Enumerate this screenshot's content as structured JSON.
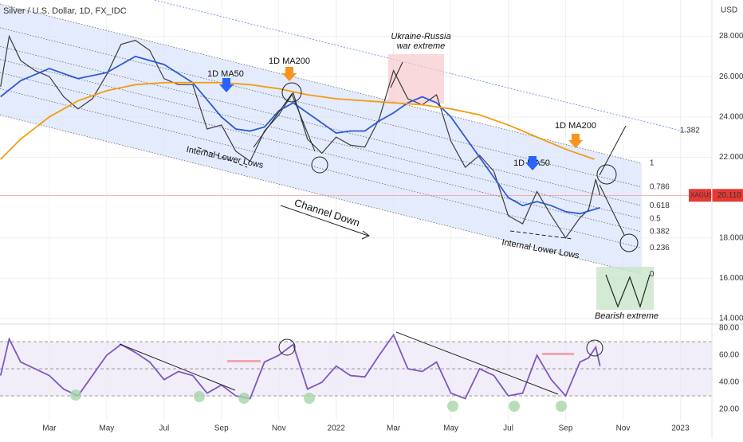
{
  "chart_data": [
    {
      "type": "line",
      "title": "Silver / U.S. Dollar, 1D, FX_IDC",
      "y_axis_label": "USD",
      "xlim": [
        0.28,
        25.1
      ],
      "xticks": [
        {
          "value": 2,
          "label": "Mar"
        },
        {
          "value": 4,
          "label": "May"
        },
        {
          "value": 6,
          "label": "Jul"
        },
        {
          "value": 8,
          "label": "Sep"
        },
        {
          "value": 10,
          "label": "Nov"
        },
        {
          "value": 12,
          "label": "2022"
        },
        {
          "value": 14,
          "label": "Mar"
        },
        {
          "value": 16,
          "label": "May"
        },
        {
          "value": 18,
          "label": "Jul"
        },
        {
          "value": 20,
          "label": "Sep"
        },
        {
          "value": 22,
          "label": "Nov"
        },
        {
          "value": 24,
          "label": "2023"
        }
      ],
      "ylim": [
        13.8,
        29.8
      ],
      "yticks": [
        {
          "value": 28,
          "label": "28.000"
        },
        {
          "value": 26,
          "label": "26.000"
        },
        {
          "value": 24,
          "label": "24.000"
        },
        {
          "value": 22,
          "label": "22.000"
        },
        {
          "value": 18,
          "label": "18.000"
        },
        {
          "value": 16,
          "label": "16.000"
        },
        {
          "value": 14,
          "label": "14.000"
        }
      ],
      "grid": true,
      "series": [
        {
          "name": "XAGUSD",
          "color": "#3c3c3c",
          "x": [
            0.3,
            0.6,
            1,
            1.5,
            2,
            2.5,
            3,
            3.5,
            4,
            4.5,
            5,
            5.5,
            6,
            6.5,
            7,
            7.5,
            8,
            8.5,
            9,
            9.5,
            10,
            10.5,
            11,
            11.5,
            12,
            12.5,
            13,
            13.5,
            14,
            14.5,
            15,
            15.5,
            16,
            16.5,
            17,
            17.5,
            18,
            18.5,
            19,
            19.5,
            20,
            20.5,
            20.8,
            21.05,
            21.2
          ],
          "values": [
            25.5,
            28.0,
            26.8,
            26.3,
            26.0,
            25.0,
            24.4,
            24.9,
            26.1,
            27.6,
            27.8,
            27.3,
            25.9,
            25.6,
            25.6,
            23.4,
            23.6,
            22.3,
            21.8,
            23.3,
            24.1,
            25.2,
            22.9,
            22.2,
            23.0,
            22.6,
            22.5,
            23.9,
            26.3,
            24.9,
            24.6,
            25.1,
            22.8,
            21.5,
            22.1,
            21.3,
            19.1,
            18.7,
            20.3,
            19.1,
            18.0,
            19.0,
            19.4,
            20.9,
            20.11
          ]
        },
        {
          "name": "1D MA50",
          "color": "#2c5bd6",
          "x": [
            0.3,
            1,
            2,
            3,
            4,
            5,
            6,
            7,
            8,
            8.5,
            9,
            9.5,
            10,
            10.5,
            11,
            11.5,
            12,
            12.5,
            13,
            13.5,
            14,
            14.5,
            15,
            15.5,
            16,
            16.5,
            17,
            17.5,
            18,
            18.5,
            19,
            19.5,
            20,
            20.5,
            21.2
          ],
          "values": [
            25.0,
            25.8,
            26.4,
            25.9,
            26.2,
            27.0,
            26.6,
            25.7,
            24.0,
            23.4,
            23.3,
            23.5,
            24.3,
            24.7,
            24.2,
            23.7,
            23.2,
            23.3,
            23.3,
            23.8,
            24.2,
            24.7,
            25.0,
            24.7,
            24.0,
            23.0,
            22.0,
            21.0,
            20.0,
            19.6,
            19.8,
            19.6,
            19.3,
            19.2,
            19.5
          ]
        },
        {
          "name": "1D MA200",
          "color": "#f39c12",
          "x": [
            0.3,
            1,
            2,
            3,
            4,
            5,
            6,
            7,
            8,
            9,
            10,
            11,
            12,
            13,
            14,
            15,
            16,
            17,
            18,
            19,
            20,
            21
          ],
          "values": [
            21.9,
            22.9,
            24.0,
            24.8,
            25.3,
            25.6,
            25.7,
            25.7,
            25.7,
            25.6,
            25.4,
            25.1,
            24.9,
            24.8,
            24.7,
            24.6,
            24.4,
            24.1,
            23.6,
            23.0,
            22.4,
            21.9
          ]
        }
      ],
      "last_label": {
        "value": 20.11,
        "label": "20.110"
      },
      "channel": {
        "x": [
          0.28,
          22.65
        ],
        "level_0": [
          24.1,
          16.2
        ],
        "level_1": [
          29.6,
          21.7
        ]
      },
      "fib_levels": [
        1.382,
        1,
        0.786,
        0.618,
        0.5,
        0.382,
        0.236,
        0
      ],
      "annotations": [
        "Ukraine-Russia",
        "war extreme",
        "Internal Lower Lows",
        "Internal Lower Lows",
        "Channel Down",
        "Bearish extreme"
      ]
    },
    {
      "type": "line",
      "xlim": [
        0.28,
        25.1
      ],
      "ylim": [
        11.8,
        82.4
      ],
      "yticks": [
        {
          "value": 80,
          "label": "80.00"
        },
        {
          "value": 60,
          "label": "60.00"
        },
        {
          "value": 40,
          "label": "40.00"
        },
        {
          "value": 20,
          "label": "20.00"
        }
      ],
      "bands": [
        30,
        50,
        70
      ],
      "series": [
        {
          "color": "#7e57c2",
          "x": [
            0.3,
            0.6,
            1,
            1.5,
            2,
            2.5,
            3,
            3.5,
            4,
            4.5,
            5,
            5.5,
            6,
            6.5,
            7,
            7.5,
            8,
            8.5,
            9,
            9.5,
            10,
            10.5,
            11,
            11.5,
            12,
            12.5,
            13,
            13.5,
            14,
            14.5,
            15,
            15.5,
            16,
            16.5,
            17,
            17.5,
            18,
            18.5,
            19,
            19.5,
            20,
            20.5,
            20.8,
            21.05,
            21.2
          ],
          "values": [
            45,
            72,
            55,
            50,
            45,
            35,
            30,
            45,
            60,
            68,
            62,
            55,
            42,
            48,
            45,
            32,
            38,
            30,
            28,
            55,
            60,
            68,
            35,
            40,
            52,
            45,
            44,
            60,
            75,
            50,
            48,
            55,
            32,
            28,
            50,
            45,
            30,
            32,
            60,
            42,
            30,
            55,
            58,
            66,
            52
          ]
        }
      ]
    }
  ]
}
